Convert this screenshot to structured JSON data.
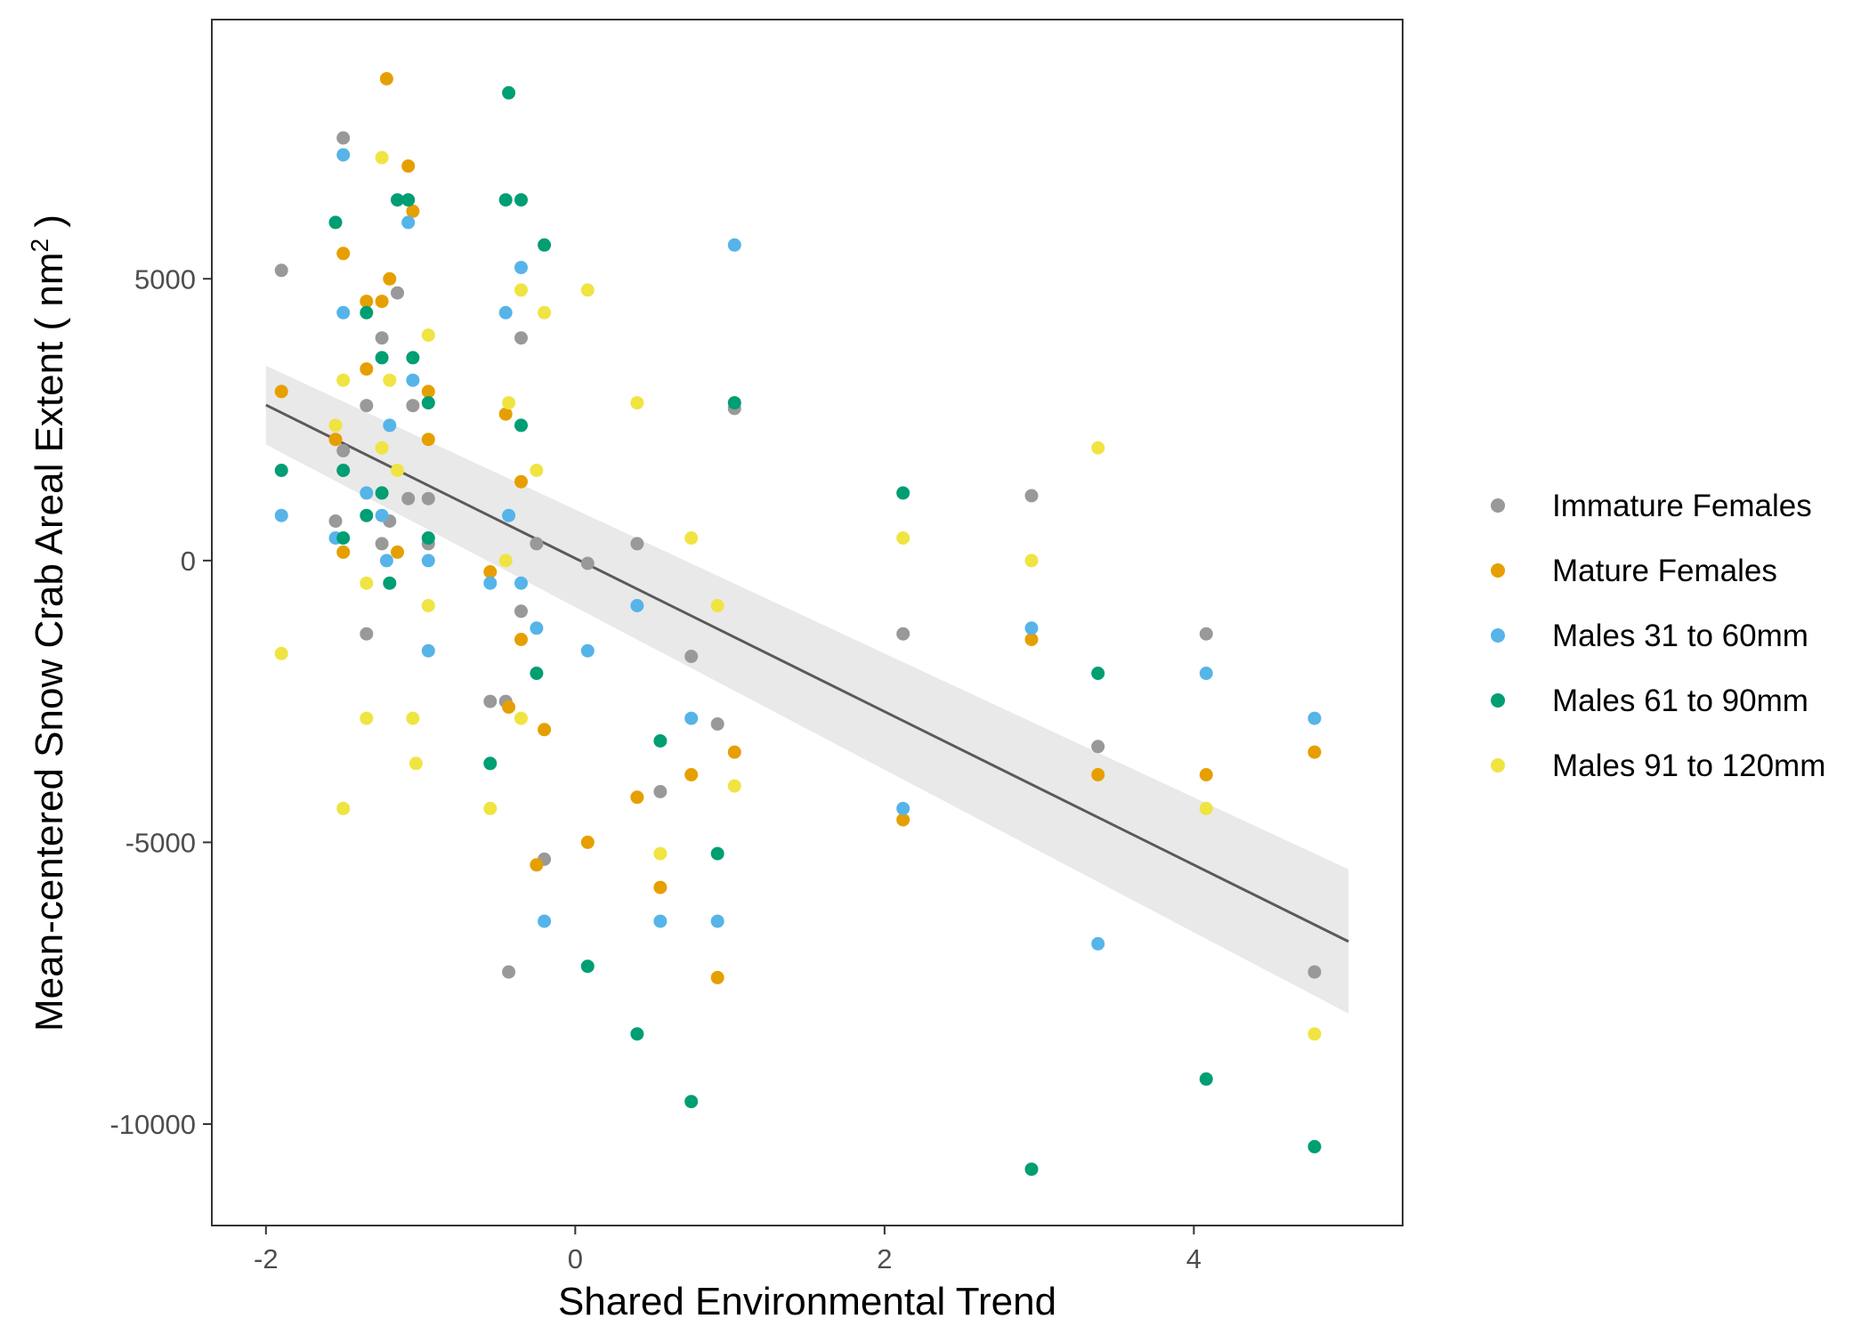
{
  "chart_data": {
    "type": "scatter",
    "xlabel": "Shared Environmental Trend",
    "ylabel_main": "Mean-centered Snow Crab Areal Extent ( nm",
    "ylabel_sup": "2",
    "ylabel_end": " )",
    "xlim": [
      -2.35,
      5.35
    ],
    "ylim": [
      -11800,
      9600
    ],
    "x_ticks": [
      -2,
      0,
      2,
      4
    ],
    "x_tick_labels": [
      "-2",
      "0",
      "2",
      "4"
    ],
    "y_ticks": [
      5000,
      0,
      -5000,
      -10000
    ],
    "y_tick_labels": [
      "5000",
      "0",
      "-5000",
      "-10000"
    ],
    "grid": false,
    "legend_position": "right",
    "fit": {
      "method": "linear",
      "x_range": [
        -2.0,
        5.0
      ],
      "intercept": 40,
      "slope": -1360,
      "ci_halfwidth_start": 700,
      "ci_halfwidth_end": 1280
    },
    "series": [
      {
        "name": "Immature Females",
        "color": "#999999",
        "points": [
          [
            -1.9,
            5150
          ],
          [
            -1.5,
            7500
          ],
          [
            -1.55,
            700
          ],
          [
            -1.5,
            1950
          ],
          [
            -1.35,
            2750
          ],
          [
            -1.35,
            -1300
          ],
          [
            -1.25,
            3950
          ],
          [
            -1.15,
            4750
          ],
          [
            -1.25,
            300
          ],
          [
            -1.2,
            700
          ],
          [
            -1.05,
            2750
          ],
          [
            -1.08,
            1100
          ],
          [
            -0.95,
            1100
          ],
          [
            -0.95,
            300
          ],
          [
            -0.55,
            -2500
          ],
          [
            -0.45,
            -2500
          ],
          [
            -0.43,
            -7300
          ],
          [
            -0.35,
            3950
          ],
          [
            -0.35,
            -900
          ],
          [
            -0.25,
            300
          ],
          [
            -0.2,
            -5300
          ],
          [
            0.08,
            -50
          ],
          [
            0.4,
            300
          ],
          [
            0.55,
            -4100
          ],
          [
            0.75,
            -1700
          ],
          [
            0.92,
            -2900
          ],
          [
            1.03,
            2700
          ],
          [
            2.12,
            -1300
          ],
          [
            2.95,
            1150
          ],
          [
            3.38,
            -3300
          ],
          [
            4.08,
            -1300
          ],
          [
            4.78,
            -7300
          ]
        ]
      },
      {
        "name": "Mature Females",
        "color": "#E69F00",
        "points": [
          [
            -1.9,
            3000
          ],
          [
            -1.55,
            2150
          ],
          [
            -1.5,
            5450
          ],
          [
            -1.5,
            150
          ],
          [
            -1.35,
            4600
          ],
          [
            -1.35,
            3400
          ],
          [
            -1.25,
            4600
          ],
          [
            -1.22,
            8550
          ],
          [
            -1.2,
            5000
          ],
          [
            -1.15,
            150
          ],
          [
            -1.08,
            7000
          ],
          [
            -1.05,
            6200
          ],
          [
            -0.95,
            3000
          ],
          [
            -0.95,
            2150
          ],
          [
            -0.55,
            -200
          ],
          [
            -0.45,
            2600
          ],
          [
            -0.43,
            -2600
          ],
          [
            -0.35,
            1400
          ],
          [
            -0.35,
            -1400
          ],
          [
            -0.25,
            -5400
          ],
          [
            -0.2,
            -3000
          ],
          [
            0.08,
            -5000
          ],
          [
            0.4,
            -4200
          ],
          [
            0.55,
            -5800
          ],
          [
            0.75,
            -3800
          ],
          [
            0.92,
            -7400
          ],
          [
            1.03,
            -3400
          ],
          [
            2.12,
            -4600
          ],
          [
            2.95,
            -1400
          ],
          [
            3.38,
            -3800
          ],
          [
            4.08,
            -3800
          ],
          [
            4.78,
            -3400
          ]
        ]
      },
      {
        "name": "Males 31 to 60mm",
        "color": "#56B4E9",
        "points": [
          [
            -1.9,
            800
          ],
          [
            -1.55,
            400
          ],
          [
            -1.5,
            7200
          ],
          [
            -1.5,
            4400
          ],
          [
            -1.35,
            1200
          ],
          [
            -1.25,
            800
          ],
          [
            -1.22,
            0
          ],
          [
            -1.2,
            2400
          ],
          [
            -1.08,
            6000
          ],
          [
            -1.05,
            3200
          ],
          [
            -0.95,
            0
          ],
          [
            -0.95,
            -1600
          ],
          [
            -0.55,
            -400
          ],
          [
            -0.45,
            4400
          ],
          [
            -0.43,
            800
          ],
          [
            -0.35,
            5200
          ],
          [
            -0.35,
            -400
          ],
          [
            -0.25,
            -1200
          ],
          [
            -0.2,
            -6400
          ],
          [
            0.08,
            -1600
          ],
          [
            0.4,
            -800
          ],
          [
            0.55,
            -6400
          ],
          [
            0.75,
            -2800
          ],
          [
            0.92,
            -6400
          ],
          [
            1.03,
            5600
          ],
          [
            2.12,
            -4400
          ],
          [
            2.95,
            -1200
          ],
          [
            3.38,
            -6800
          ],
          [
            4.08,
            -2000
          ],
          [
            4.78,
            -2800
          ]
        ]
      },
      {
        "name": "Males 61 to 90mm",
        "color": "#009E73",
        "points": [
          [
            -1.9,
            1600
          ],
          [
            -1.55,
            6000
          ],
          [
            -1.5,
            1600
          ],
          [
            -1.5,
            400
          ],
          [
            -1.35,
            4400
          ],
          [
            -1.35,
            800
          ],
          [
            -1.25,
            3600
          ],
          [
            -1.25,
            1200
          ],
          [
            -1.2,
            -400
          ],
          [
            -1.15,
            6400
          ],
          [
            -1.08,
            6400
          ],
          [
            -1.05,
            3600
          ],
          [
            -0.95,
            2800
          ],
          [
            -0.95,
            400
          ],
          [
            -0.55,
            -3600
          ],
          [
            -0.45,
            6400
          ],
          [
            -0.43,
            8300
          ],
          [
            -0.35,
            6400
          ],
          [
            -0.35,
            2400
          ],
          [
            -0.25,
            -2000
          ],
          [
            -0.2,
            5600
          ],
          [
            0.08,
            -7200
          ],
          [
            0.4,
            -8400
          ],
          [
            0.55,
            -3200
          ],
          [
            0.75,
            -9600
          ],
          [
            0.92,
            -5200
          ],
          [
            1.03,
            2800
          ],
          [
            2.12,
            1200
          ],
          [
            2.95,
            -10800
          ],
          [
            3.38,
            -2000
          ],
          [
            4.08,
            -9200
          ],
          [
            4.78,
            -10400
          ]
        ]
      },
      {
        "name": "Males 91 to 120mm",
        "color": "#F0E442",
        "points": [
          [
            -1.9,
            -1650
          ],
          [
            -1.55,
            2400
          ],
          [
            -1.5,
            3200
          ],
          [
            -1.5,
            -4400
          ],
          [
            -1.35,
            -400
          ],
          [
            -1.35,
            -2800
          ],
          [
            -1.25,
            7150
          ],
          [
            -1.25,
            2000
          ],
          [
            -1.2,
            3200
          ],
          [
            -1.15,
            1600
          ],
          [
            -1.05,
            -2800
          ],
          [
            -1.03,
            -3600
          ],
          [
            -0.95,
            4000
          ],
          [
            -0.95,
            -800
          ],
          [
            -0.55,
            -4400
          ],
          [
            -0.45,
            0
          ],
          [
            -0.43,
            2800
          ],
          [
            -0.35,
            4800
          ],
          [
            -0.35,
            -2800
          ],
          [
            -0.25,
            1600
          ],
          [
            -0.2,
            4400
          ],
          [
            0.08,
            4800
          ],
          [
            0.4,
            2800
          ],
          [
            0.55,
            -5200
          ],
          [
            0.75,
            400
          ],
          [
            0.92,
            -800
          ],
          [
            1.03,
            -4000
          ],
          [
            2.12,
            400
          ],
          [
            2.95,
            0
          ],
          [
            3.38,
            2000
          ],
          [
            4.08,
            -4400
          ],
          [
            4.78,
            -8400
          ]
        ]
      }
    ]
  }
}
